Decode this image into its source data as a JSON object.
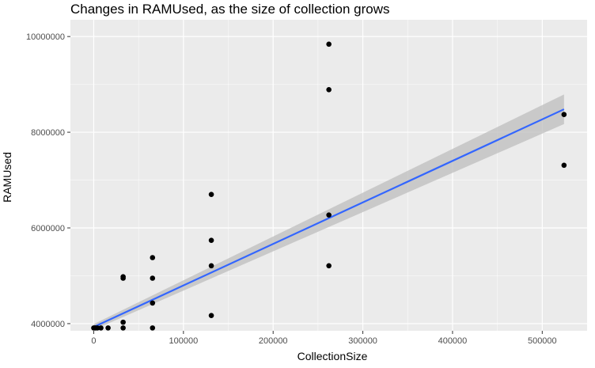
{
  "colors": {
    "panel_background": "#ebebeb",
    "gridline": "#ffffff",
    "points": "#000000",
    "fit_line": "#3366ff",
    "confidence_band": "#bdbdbd"
  },
  "chart_data": {
    "type": "scatter",
    "title": "Changes in RAMUsed, as the size of collection grows",
    "xlabel": "CollectionSize",
    "ylabel": "RAMUsed",
    "xlim": [
      -26000,
      550000
    ],
    "ylim": [
      3850000,
      10350000
    ],
    "x_ticks": [
      0,
      100000,
      200000,
      300000,
      400000,
      500000
    ],
    "x_tick_labels": [
      "0",
      "100000",
      "200000",
      "300000",
      "400000",
      "500000"
    ],
    "y_ticks": [
      4000000,
      6000000,
      8000000,
      10000000
    ],
    "y_tick_labels": [
      "4000000",
      "6000000",
      "8000000",
      "10000000"
    ],
    "grid": true,
    "points": [
      {
        "x": 0,
        "y": 3910000
      },
      {
        "x": 1000,
        "y": 3910000
      },
      {
        "x": 2000,
        "y": 3910000
      },
      {
        "x": 4000,
        "y": 3910000
      },
      {
        "x": 8000,
        "y": 3910000
      },
      {
        "x": 16000,
        "y": 3910000
      },
      {
        "x": 32768,
        "y": 3910000
      },
      {
        "x": 32768,
        "y": 4030000
      },
      {
        "x": 32768,
        "y": 4950000
      },
      {
        "x": 32768,
        "y": 4980000
      },
      {
        "x": 65536,
        "y": 3910000
      },
      {
        "x": 65536,
        "y": 4430000
      },
      {
        "x": 65536,
        "y": 4950000
      },
      {
        "x": 65536,
        "y": 5380000
      },
      {
        "x": 131072,
        "y": 4170000
      },
      {
        "x": 131072,
        "y": 5210000
      },
      {
        "x": 131072,
        "y": 5740000
      },
      {
        "x": 131072,
        "y": 6700000
      },
      {
        "x": 262144,
        "y": 5210000
      },
      {
        "x": 262144,
        "y": 6270000
      },
      {
        "x": 262144,
        "y": 8890000
      },
      {
        "x": 262144,
        "y": 9840000
      },
      {
        "x": 524288,
        "y": 7310000
      },
      {
        "x": 524288,
        "y": 8370000
      }
    ],
    "trend_line": {
      "method": "linear fit",
      "x": [
        0,
        524288
      ],
      "y": [
        3930000,
        8480000
      ],
      "band_lower": [
        3870000,
        8170000
      ],
      "band_upper": [
        3990000,
        8790000
      ]
    }
  }
}
